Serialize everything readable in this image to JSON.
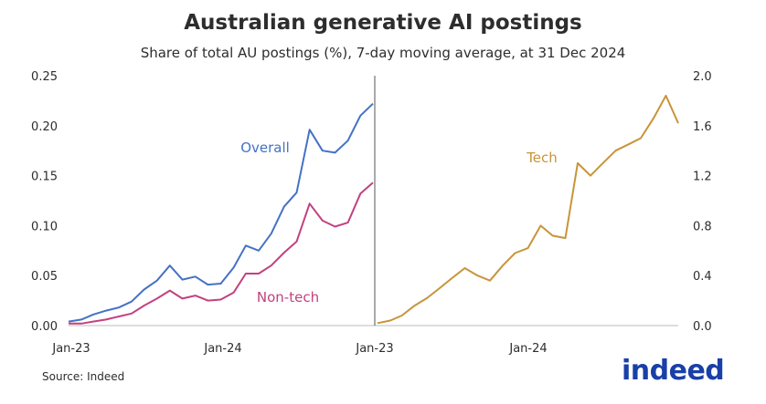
{
  "title": "Australian generative AI postings",
  "subtitle": "Share of total AU postings (%), 7-day moving average, at 31 Dec 2024",
  "source": "Source: Indeed",
  "logo_text": "indeed",
  "colors": {
    "overall": "#4472c4",
    "nontech": "#c2417f",
    "tech": "#c8943a",
    "text": "#2d2d2d",
    "divider": "#555555",
    "axis": "#bbbbbb",
    "logo": "#1a3fa8"
  },
  "chart_data": [
    {
      "type": "line",
      "x_ticks": [
        "Jan-23",
        "Jan-24",
        "Jan-23"
      ],
      "y_ticks": [
        "0.00",
        "0.05",
        "0.10",
        "0.15",
        "0.20",
        "0.25"
      ],
      "ylim": [
        0,
        0.25
      ],
      "xlim": [
        "2023-01-01",
        "2024-12-31"
      ],
      "grid": false,
      "series": [
        {
          "name": "Overall",
          "x": [
            "2023-01-01",
            "2023-02-01",
            "2023-03-01",
            "2023-04-01",
            "2023-05-01",
            "2023-06-01",
            "2023-07-01",
            "2023-08-01",
            "2023-09-01",
            "2023-10-01",
            "2023-11-01",
            "2023-12-01",
            "2024-01-01",
            "2024-02-01",
            "2024-03-01",
            "2024-04-01",
            "2024-05-01",
            "2024-06-01",
            "2024-07-01",
            "2024-08-01",
            "2024-09-01",
            "2024-10-01",
            "2024-11-01",
            "2024-12-01",
            "2024-12-31"
          ],
          "values": [
            0.004,
            0.006,
            0.011,
            0.015,
            0.018,
            0.024,
            0.036,
            0.045,
            0.06,
            0.046,
            0.049,
            0.041,
            0.042,
            0.058,
            0.08,
            0.075,
            0.092,
            0.119,
            0.133,
            0.196,
            0.175,
            0.173,
            0.185,
            0.21,
            0.222
          ]
        },
        {
          "name": "Non-tech",
          "x": [
            "2023-01-01",
            "2023-02-01",
            "2023-03-01",
            "2023-04-01",
            "2023-05-01",
            "2023-06-01",
            "2023-07-01",
            "2023-08-01",
            "2023-09-01",
            "2023-10-01",
            "2023-11-01",
            "2023-12-01",
            "2024-01-01",
            "2024-02-01",
            "2024-03-01",
            "2024-04-01",
            "2024-05-01",
            "2024-06-01",
            "2024-07-01",
            "2024-08-01",
            "2024-09-01",
            "2024-10-01",
            "2024-11-01",
            "2024-12-01",
            "2024-12-31"
          ],
          "values": [
            0.002,
            0.002,
            0.004,
            0.006,
            0.009,
            0.012,
            0.02,
            0.027,
            0.035,
            0.027,
            0.03,
            0.025,
            0.026,
            0.033,
            0.052,
            0.052,
            0.06,
            0.073,
            0.084,
            0.122,
            0.105,
            0.099,
            0.103,
            0.132,
            0.143
          ]
        },
        {
          "name": "Tech",
          "axis": "right",
          "x": [
            "2023-01-01",
            "2023-02-01",
            "2023-03-01",
            "2023-04-01",
            "2023-05-01",
            "2023-06-01",
            "2023-07-01",
            "2023-08-01",
            "2023-09-01",
            "2023-10-01",
            "2023-11-01",
            "2023-12-01",
            "2024-01-01",
            "2024-02-01",
            "2024-03-01",
            "2024-04-01",
            "2024-05-01",
            "2024-06-01",
            "2024-07-01",
            "2024-08-01",
            "2024-09-01",
            "2024-10-01",
            "2024-11-01",
            "2024-12-01",
            "2024-12-31"
          ],
          "values": [
            0.02,
            0.04,
            0.08,
            0.16,
            0.22,
            0.3,
            0.38,
            0.46,
            0.4,
            0.36,
            0.48,
            0.58,
            0.62,
            0.8,
            0.72,
            0.7,
            1.3,
            1.2,
            1.3,
            1.4,
            1.45,
            1.5,
            1.66,
            1.84,
            1.62
          ]
        }
      ],
      "annotations": [
        {
          "text": "Overall",
          "series": "Overall"
        },
        {
          "text": "Non-tech",
          "series": "Non-tech"
        },
        {
          "text": "Tech",
          "series": "Tech"
        }
      ]
    },
    {
      "type": "line",
      "x_ticks": [
        "Jan-24"
      ],
      "y_ticks": [
        "0.0",
        "0.4",
        "0.8",
        "1.2",
        "1.6",
        "2.0"
      ],
      "ylim": [
        0,
        2.0
      ],
      "grid": false
    }
  ]
}
